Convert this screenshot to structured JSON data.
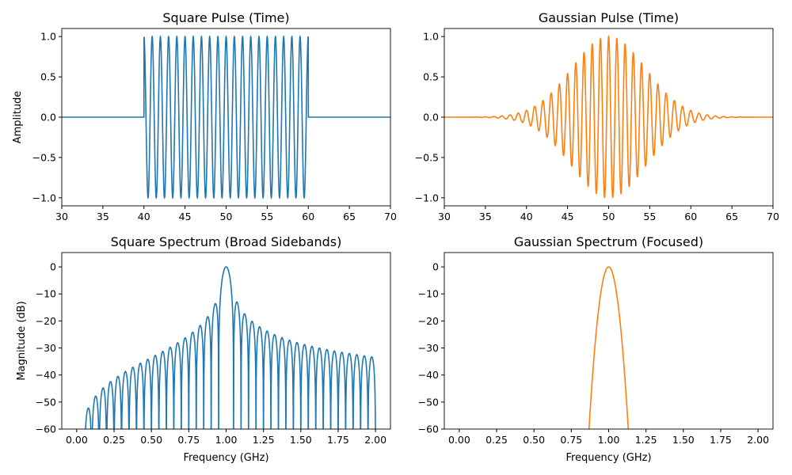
{
  "chart_data": [
    {
      "type": "line",
      "title": "Square Pulse (Time)",
      "xlabel": "",
      "ylabel": "Amplitude",
      "xlim": [
        30,
        70
      ],
      "ylim": [
        -1.1,
        1.1
      ],
      "xticks": [
        "30",
        "35",
        "40",
        "45",
        "50",
        "55",
        "60",
        "65",
        "70"
      ],
      "yticks": [
        "−1.0",
        "−0.5",
        "0.0",
        "0.5",
        "1.0"
      ],
      "color": "#1f77b4",
      "signal": {
        "kind": "square",
        "carrier_ghz": 1.0,
        "start_ns": 40,
        "end_ns": 60,
        "amplitude": 1.0
      }
    },
    {
      "type": "line",
      "title": "Gaussian Pulse (Time)",
      "xlabel": "",
      "ylabel": "",
      "xlim": [
        30,
        70
      ],
      "ylim": [
        -1.1,
        1.1
      ],
      "xticks": [
        "30",
        "35",
        "40",
        "45",
        "50",
        "55",
        "60",
        "65",
        "70"
      ],
      "yticks": [
        "−1.0",
        "−0.5",
        "0.0",
        "0.5",
        "1.0"
      ],
      "color": "#ff7f0e",
      "signal": {
        "kind": "gaussian",
        "carrier_ghz": 1.0,
        "center_ns": 50,
        "sigma_ns": 4.5,
        "amplitude": 1.0
      }
    },
    {
      "type": "line",
      "title": "Square Spectrum (Broad Sidebands)",
      "xlabel": "Frequency (GHz)",
      "ylabel": "Magnitude (dB)",
      "xlim": [
        -0.1,
        2.1
      ],
      "ylim": [
        -60,
        5.3
      ],
      "xticks": [
        "0.00",
        "0.25",
        "0.50",
        "0.75",
        "1.00",
        "1.25",
        "1.50",
        "1.75",
        "2.00"
      ],
      "yticks": [
        "−60",
        "−50",
        "−40",
        "−30",
        "−20",
        "−10",
        "0"
      ],
      "color": "#1f77b4",
      "peak": {
        "x": 1.0,
        "y": 0
      }
    },
    {
      "type": "line",
      "title": "Gaussian Spectrum (Focused)",
      "xlabel": "Frequency (GHz)",
      "ylabel": "",
      "xlim": [
        -0.1,
        2.1
      ],
      "ylim": [
        -60,
        5.3
      ],
      "xticks": [
        "0.00",
        "0.25",
        "0.50",
        "0.75",
        "1.00",
        "1.25",
        "1.50",
        "1.75",
        "2.00"
      ],
      "yticks": [
        "−60",
        "−50",
        "−40",
        "−30",
        "−20",
        "−10",
        "0"
      ],
      "color": "#ff7f0e",
      "peak": {
        "x": 1.0,
        "y": 0
      }
    }
  ]
}
